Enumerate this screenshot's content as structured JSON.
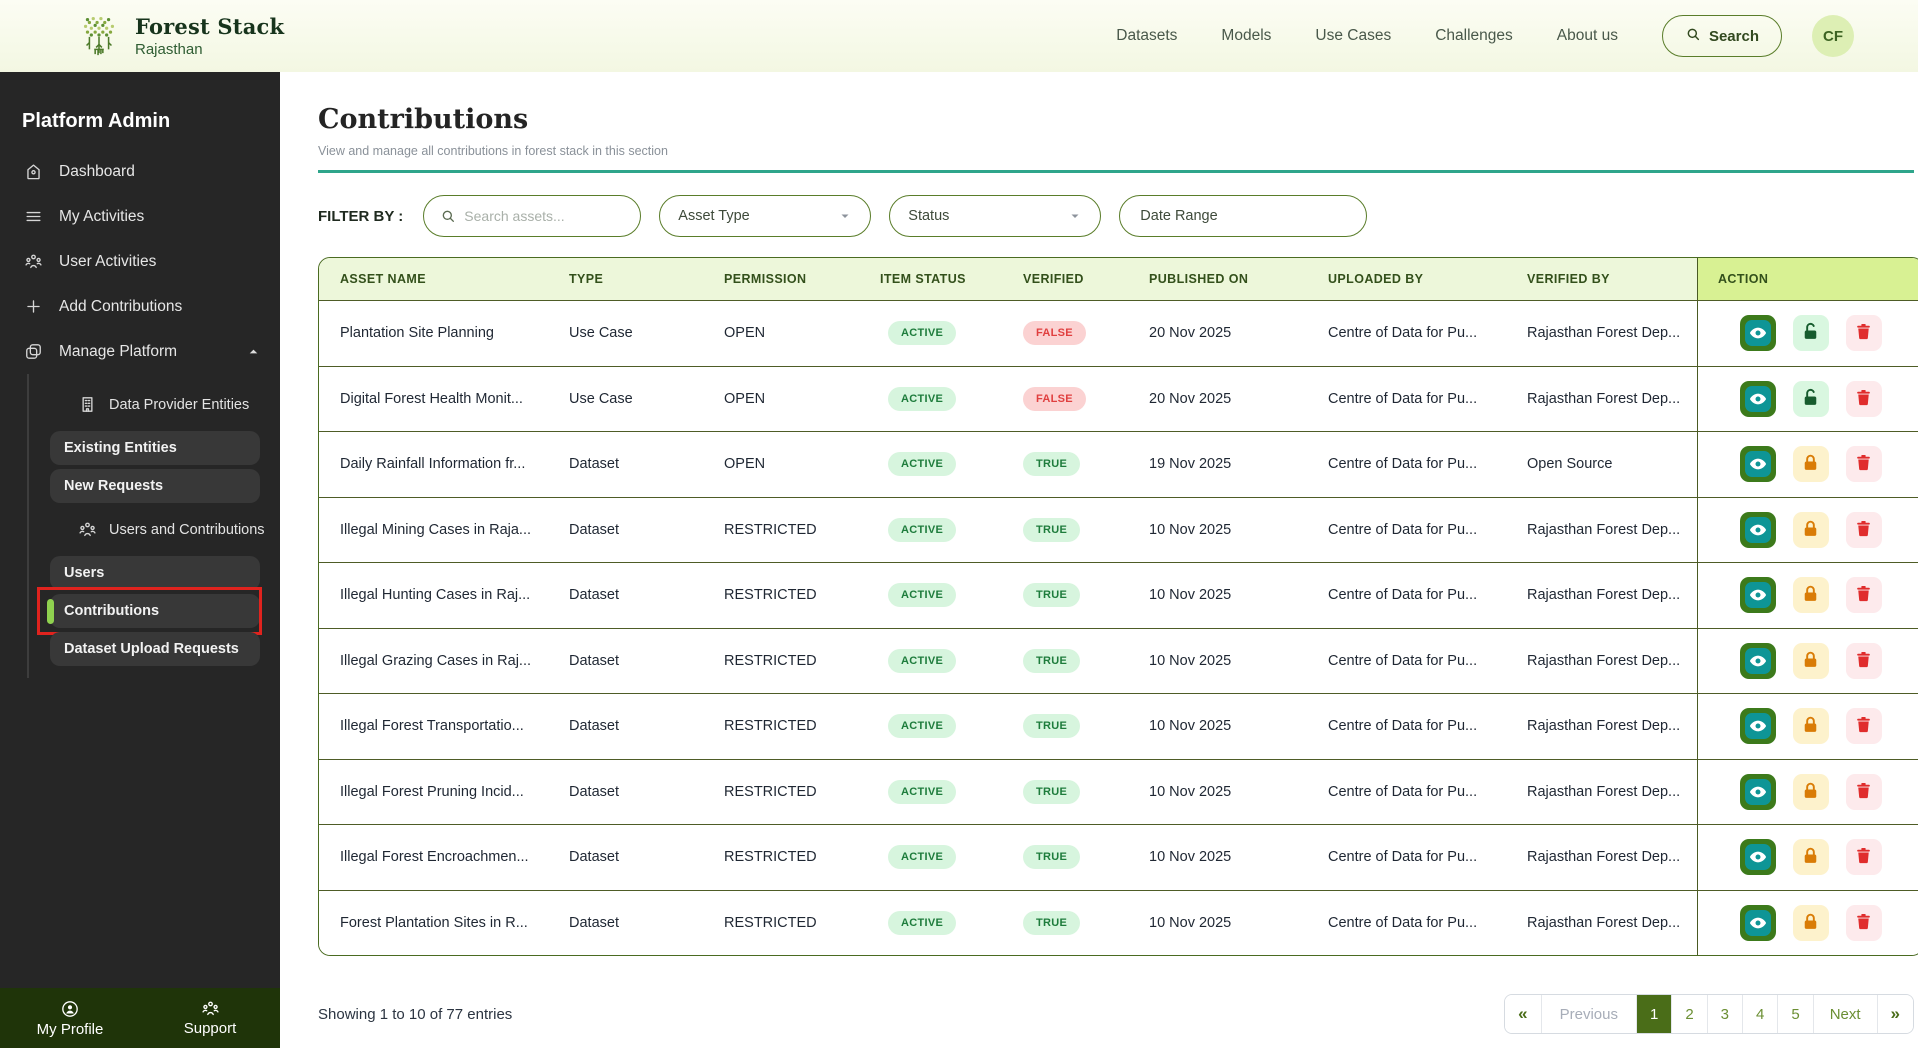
{
  "brand": {
    "name": "Forest Stack",
    "region": "Rajasthan"
  },
  "header": {
    "nav": [
      "Datasets",
      "Models",
      "Use Cases",
      "Challenges",
      "About us"
    ],
    "search_label": "Search",
    "avatar_initials": "CF"
  },
  "sidebar": {
    "title": "Platform Admin",
    "items": [
      {
        "label": "Dashboard",
        "icon": "home-icon"
      },
      {
        "label": "My Activities",
        "icon": "list-icon"
      },
      {
        "label": "User Activities",
        "icon": "user-activities-icon"
      },
      {
        "label": "Add Contributions",
        "icon": "plus-icon"
      },
      {
        "label": "Manage Platform",
        "icon": "manage-platform-icon",
        "expanded": true
      }
    ],
    "submenu": [
      {
        "type": "link",
        "label": "Data Provider Entities",
        "icon": "building-icon"
      },
      {
        "type": "box",
        "label": "Existing Entities"
      },
      {
        "type": "box",
        "label": "New Requests"
      },
      {
        "type": "link",
        "label": "Users and Contributions",
        "icon": "users-icon"
      },
      {
        "type": "box",
        "label": "Users"
      },
      {
        "type": "box",
        "label": "Contributions",
        "selected": true,
        "annotated": true
      },
      {
        "type": "box",
        "label": "Dataset Upload Requests"
      }
    ],
    "footer": [
      {
        "label": "My Profile",
        "icon": "profile-icon"
      },
      {
        "label": "Support",
        "icon": "support-icon"
      }
    ]
  },
  "page": {
    "title": "Contributions",
    "subtitle": "View and manage all contributions in forest stack in this section"
  },
  "filters": {
    "label": "FILTER BY :",
    "search_placeholder": "Search assets...",
    "asset_type": "Asset Type",
    "status": "Status",
    "date_range": "Date Range"
  },
  "table": {
    "columns": [
      "ASSET NAME",
      "TYPE",
      "PERMISSION",
      "ITEM STATUS",
      "VERIFIED",
      "PUBLISHED ON",
      "UPLOADED BY",
      "VERIFIED BY",
      "ACTION"
    ],
    "rows": [
      {
        "asset_name": "Plantation Site Planning",
        "type": "Use Case",
        "permission": "OPEN",
        "item_status": "ACTIVE",
        "verified": "FALSE",
        "published_on": "20 Nov 2025",
        "uploaded_by": "Centre of Data for Pu...",
        "verified_by": "Rajasthan Forest Dep...",
        "lock_state": "unlocked"
      },
      {
        "asset_name": "Digital Forest Health Monit...",
        "type": "Use Case",
        "permission": "OPEN",
        "item_status": "ACTIVE",
        "verified": "FALSE",
        "published_on": "20 Nov 2025",
        "uploaded_by": "Centre of Data for Pu...",
        "verified_by": "Rajasthan Forest Dep...",
        "lock_state": "unlocked"
      },
      {
        "asset_name": "Daily Rainfall Information fr...",
        "type": "Dataset",
        "permission": "OPEN",
        "item_status": "ACTIVE",
        "verified": "TRUE",
        "published_on": "19 Nov 2025",
        "uploaded_by": "Centre of Data for Pu...",
        "verified_by": "Open Source",
        "lock_state": "locked"
      },
      {
        "asset_name": "Illegal Mining Cases in Raja...",
        "type": "Dataset",
        "permission": "RESTRICTED",
        "item_status": "ACTIVE",
        "verified": "TRUE",
        "published_on": "10 Nov 2025",
        "uploaded_by": "Centre of Data for Pu...",
        "verified_by": "Rajasthan Forest Dep...",
        "lock_state": "locked"
      },
      {
        "asset_name": "Illegal Hunting Cases in Raj...",
        "type": "Dataset",
        "permission": "RESTRICTED",
        "item_status": "ACTIVE",
        "verified": "TRUE",
        "published_on": "10 Nov 2025",
        "uploaded_by": "Centre of Data for Pu...",
        "verified_by": "Rajasthan Forest Dep...",
        "lock_state": "locked"
      },
      {
        "asset_name": "Illegal Grazing Cases in Raj...",
        "type": "Dataset",
        "permission": "RESTRICTED",
        "item_status": "ACTIVE",
        "verified": "TRUE",
        "published_on": "10 Nov 2025",
        "uploaded_by": "Centre of Data for Pu...",
        "verified_by": "Rajasthan Forest Dep...",
        "lock_state": "locked"
      },
      {
        "asset_name": "Illegal Forest Transportatio...",
        "type": "Dataset",
        "permission": "RESTRICTED",
        "item_status": "ACTIVE",
        "verified": "TRUE",
        "published_on": "10 Nov 2025",
        "uploaded_by": "Centre of Data for Pu...",
        "verified_by": "Rajasthan Forest Dep...",
        "lock_state": "locked"
      },
      {
        "asset_name": "Illegal Forest Pruning Incid...",
        "type": "Dataset",
        "permission": "RESTRICTED",
        "item_status": "ACTIVE",
        "verified": "TRUE",
        "published_on": "10 Nov 2025",
        "uploaded_by": "Centre of Data for Pu...",
        "verified_by": "Rajasthan Forest Dep...",
        "lock_state": "locked"
      },
      {
        "asset_name": "Illegal Forest Encroachmen...",
        "type": "Dataset",
        "permission": "RESTRICTED",
        "item_status": "ACTIVE",
        "verified": "TRUE",
        "published_on": "10 Nov 2025",
        "uploaded_by": "Centre of Data for Pu...",
        "verified_by": "Rajasthan Forest Dep...",
        "lock_state": "locked"
      },
      {
        "asset_name": "Forest Plantation Sites in R...",
        "type": "Dataset",
        "permission": "RESTRICTED",
        "item_status": "ACTIVE",
        "verified": "TRUE",
        "published_on": "10 Nov 2025",
        "uploaded_by": "Centre of Data for Pu...",
        "verified_by": "Rajasthan Forest Dep...",
        "lock_state": "locked"
      }
    ]
  },
  "pagination": {
    "summary": "Showing 1 to 10 of 77 entries",
    "buttons": [
      {
        "label": "«",
        "kind": "first"
      },
      {
        "label": "Previous",
        "kind": "prev"
      },
      {
        "label": "1",
        "kind": "page",
        "active": true
      },
      {
        "label": "2",
        "kind": "page"
      },
      {
        "label": "3",
        "kind": "page"
      },
      {
        "label": "4",
        "kind": "page"
      },
      {
        "label": "5",
        "kind": "page"
      },
      {
        "label": "Next",
        "kind": "next"
      },
      {
        "label": "»",
        "kind": "last"
      }
    ]
  },
  "colors": {
    "accent_dark_green": "#4a6d18",
    "rule_teal": "#2ea58b",
    "selected_accent": "#8fd14f",
    "annotation_red": "#e0231e",
    "active_badge_text": "#1e7c3c",
    "false_badge_text": "#e03f3f",
    "eye_button_green": "#3c7a1b",
    "eye_inner_teal": "#0e9596",
    "lock_orange": "#d97c06",
    "delete_red": "#e02d2d"
  }
}
